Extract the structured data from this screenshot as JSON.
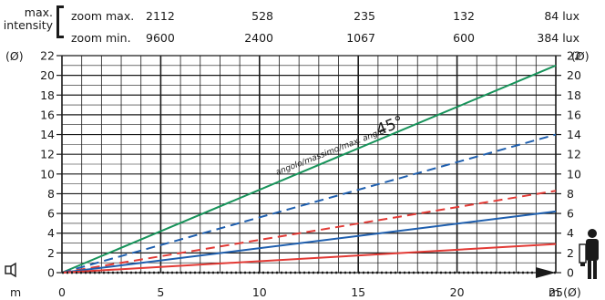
{
  "header": {
    "intensity_label": [
      "max.",
      "intensity"
    ],
    "zoom_max_label": "zoom max.",
    "zoom_min_label": "zoom min.",
    "zoom_max_values": [
      "2112",
      "528",
      "235",
      "132",
      "84 lux"
    ],
    "zoom_min_values": [
      "9600",
      "2400",
      "1067",
      "600",
      "384 lux"
    ]
  },
  "colors": {
    "green": "#17935a",
    "blue": "#1f5fae",
    "red": "#e23a35",
    "grid": "#1a1a1a"
  },
  "icons": [
    "light-fixture-icon",
    "person-standing-icon"
  ],
  "chart_data": {
    "type": "line",
    "xlabel_left": "m",
    "xlabel_right": "m (Ø)",
    "ylabel_left": "(Ø)",
    "ylabel_right": "(Ø)",
    "xlim": [
      0,
      25
    ],
    "ylim": [
      0,
      22
    ],
    "x_ticks": [
      "0",
      "5",
      "10",
      "15",
      "20",
      "25"
    ],
    "y_ticks": [
      "0",
      "2",
      "4",
      "6",
      "8",
      "10",
      "12",
      "14",
      "16",
      "18",
      "20",
      "22"
    ],
    "grid": true,
    "annotation": {
      "text": "angolo/massimo/max. angle:",
      "angle_value": "45°"
    },
    "series": [
      {
        "color": "#17935a",
        "style": "solid",
        "x": [
          0,
          25
        ],
        "y": [
          0,
          21.0
        ]
      },
      {
        "color": "#1f5fae",
        "style": "dashed",
        "x": [
          0,
          25
        ],
        "y": [
          0,
          14.0
        ]
      },
      {
        "color": "#e23a35",
        "style": "dashed",
        "x": [
          0,
          25
        ],
        "y": [
          0,
          8.3
        ]
      },
      {
        "color": "#1f5fae",
        "style": "solid",
        "x": [
          0,
          25
        ],
        "y": [
          0,
          6.2
        ]
      },
      {
        "color": "#e23a35",
        "style": "solid",
        "x": [
          0,
          25
        ],
        "y": [
          0,
          2.9
        ]
      },
      {
        "color": "#1a1a1a",
        "style": "dotted",
        "x": [
          0,
          25
        ],
        "y": [
          0,
          0
        ]
      }
    ]
  }
}
